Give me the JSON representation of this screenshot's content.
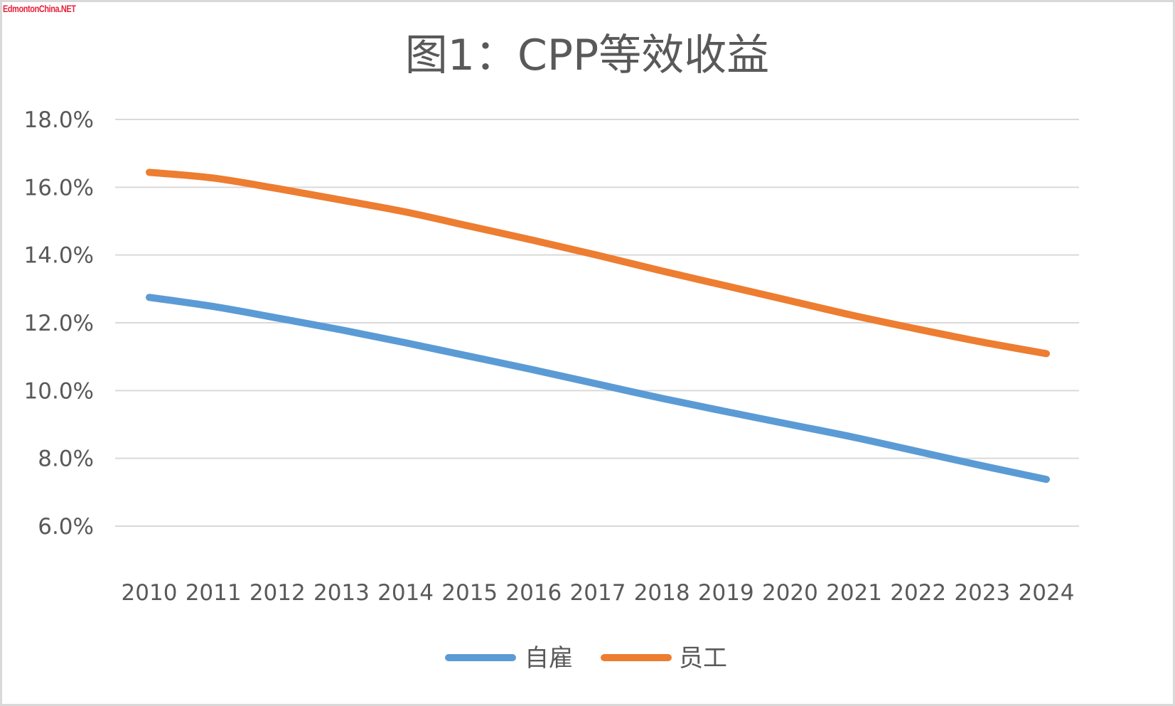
{
  "watermark": "EdmontonChina.NET",
  "chart_data": {
    "type": "line",
    "title": "图1：CPP等效收益",
    "xlabel": "",
    "ylabel": "",
    "categories": [
      "2010",
      "2011",
      "2012",
      "2013",
      "2014",
      "2015",
      "2016",
      "2017",
      "2018",
      "2019",
      "2020",
      "2021",
      "2022",
      "2023",
      "2024"
    ],
    "series": [
      {
        "name": "自雇",
        "color": "#5b9bd5",
        "values": [
          12.75,
          12.48,
          12.14,
          11.79,
          11.41,
          11.01,
          10.61,
          10.19,
          9.77,
          9.38,
          9.0,
          8.62,
          8.2,
          7.78,
          7.38
        ]
      },
      {
        "name": "员工",
        "color": "#ed7d31",
        "values": [
          16.44,
          16.27,
          15.96,
          15.62,
          15.27,
          14.85,
          14.43,
          13.99,
          13.53,
          13.09,
          12.65,
          12.21,
          11.81,
          11.43,
          11.09
        ]
      }
    ],
    "ylim": [
      6,
      18
    ],
    "yticks": [
      6,
      8,
      10,
      12,
      14,
      16,
      18
    ],
    "ytick_labels": [
      "6.0%",
      "8.0%",
      "10.0%",
      "12.0%",
      "14.0%",
      "16.0%",
      "18.0%"
    ],
    "grid": true,
    "gridline_color": "#d9d9d9",
    "legend": "bottom",
    "smooth": true
  }
}
